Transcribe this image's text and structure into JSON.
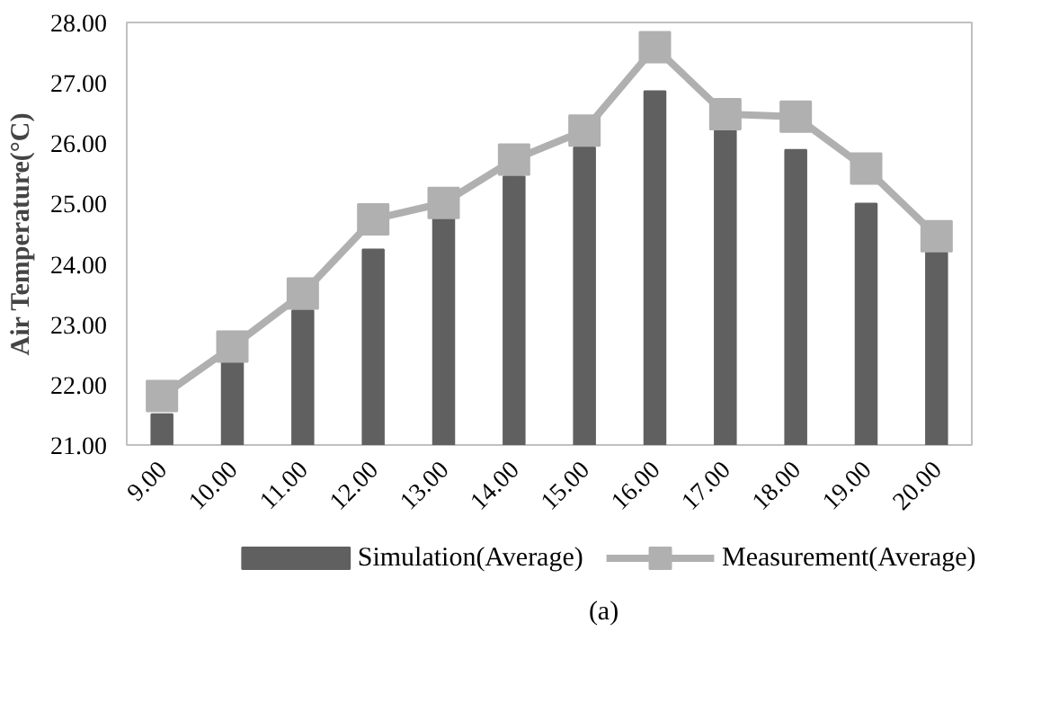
{
  "chart_data": {
    "type": "bar",
    "ylabel": "Air Temperature(°C)",
    "categories": [
      "9.00",
      "10.00",
      "11.00",
      "12.00",
      "13.00",
      "14.00",
      "15.00",
      "16.00",
      "17.00",
      "18.00",
      "19.00",
      "20.00"
    ],
    "series": [
      {
        "name": "Simulation(Average)",
        "color": "#606060",
        "values": [
          21.51,
          22.37,
          23.23,
          24.24,
          24.79,
          25.45,
          25.93,
          26.86,
          26.21,
          25.89,
          25.0,
          24.19
        ]
      },
      {
        "name": "Measurement(Average)",
        "type": "line",
        "color": "#b0b0b0",
        "marker": "square",
        "values": [
          21.81,
          22.63,
          23.51,
          24.74,
          25.01,
          25.73,
          26.21,
          27.59,
          26.48,
          26.44,
          25.58,
          24.46
        ]
      }
    ],
    "ylim": [
      21,
      28
    ],
    "yticks": [
      {
        "value": 21,
        "label": "21.00"
      },
      {
        "value": 22,
        "label": "22.00"
      },
      {
        "value": 23,
        "label": "23.00"
      },
      {
        "value": 24,
        "label": "24.00"
      },
      {
        "value": 25,
        "label": "25.00"
      },
      {
        "value": 26,
        "label": "26.00"
      },
      {
        "value": 27,
        "label": "27.00"
      },
      {
        "value": 28,
        "label": "28.00"
      }
    ],
    "grid": false,
    "legend": "bottom",
    "annotations": [
      "(a)"
    ]
  }
}
